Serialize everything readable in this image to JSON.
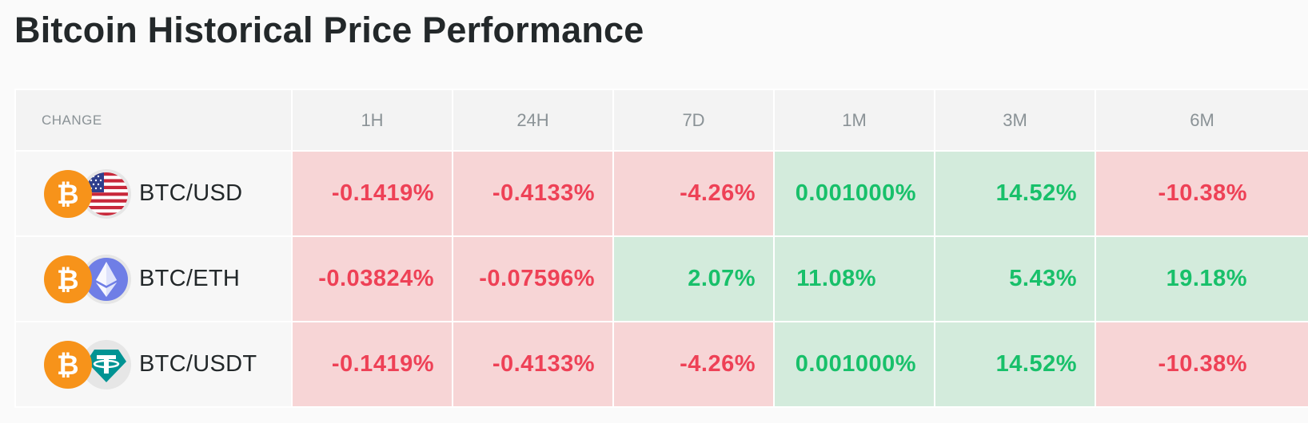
{
  "title": "Bitcoin Historical Price Performance",
  "table": {
    "header": [
      "CHANGE",
      "1H",
      "24H",
      "7D",
      "1M",
      "3M",
      "6M"
    ],
    "rows": [
      {
        "pair": "BTC/USD",
        "quote_icon": "us-flag-icon",
        "cells": [
          {
            "value": "-0.1419%",
            "trend": "negative"
          },
          {
            "value": "-0.4133%",
            "trend": "negative"
          },
          {
            "value": "-4.26%",
            "trend": "negative"
          },
          {
            "value": "0.001000%",
            "trend": "positive"
          },
          {
            "value": "14.52%",
            "trend": "positive"
          },
          {
            "value": "-10.38%",
            "trend": "negative"
          }
        ]
      },
      {
        "pair": "BTC/ETH",
        "quote_icon": "ethereum-icon",
        "cells": [
          {
            "value": "-0.03824%",
            "trend": "negative"
          },
          {
            "value": "-0.07596%",
            "trend": "negative"
          },
          {
            "value": "2.07%",
            "trend": "positive"
          },
          {
            "value": "11.08%",
            "trend": "positive"
          },
          {
            "value": "5.43%",
            "trend": "positive"
          },
          {
            "value": "19.18%",
            "trend": "positive"
          }
        ]
      },
      {
        "pair": "BTC/USDT",
        "quote_icon": "tether-icon",
        "cells": [
          {
            "value": "-0.1419%",
            "trend": "negative"
          },
          {
            "value": "-0.4133%",
            "trend": "negative"
          },
          {
            "value": "-4.26%",
            "trend": "negative"
          },
          {
            "value": "0.001000%",
            "trend": "positive"
          },
          {
            "value": "14.52%",
            "trend": "positive"
          },
          {
            "value": "-10.38%",
            "trend": "negative"
          }
        ]
      }
    ]
  },
  "colors": {
    "negative_text": "#ee4156",
    "negative_bg": "#f7d5d6",
    "positive_text": "#18c06a",
    "positive_bg": "#d3ebdc",
    "bitcoin": "#f7931a",
    "ethereum": "#6f7ee6",
    "tether": "#009393"
  }
}
